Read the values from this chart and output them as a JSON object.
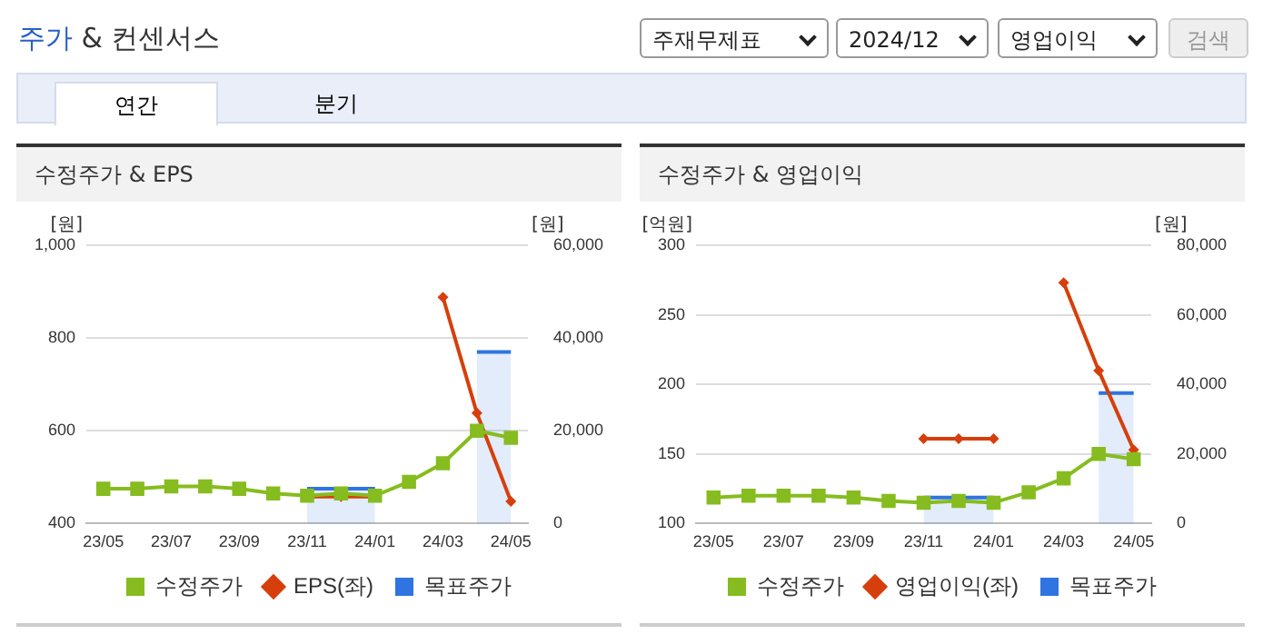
{
  "chart_data": [
    {
      "type": "other",
      "title": "주가 & 컨센서스",
      "annotations": [
        "주재무제표",
        "2024/12",
        "영업이익",
        "검색",
        "연간",
        "분기"
      ]
    },
    {
      "type": "line",
      "title": "수정주가 & EPS",
      "ylabel": "[원]",
      "y2label": "[원]",
      "categories": [
        "23/05",
        null,
        "23/07",
        null,
        "23/09",
        null,
        "23/11",
        null,
        "24/01",
        null,
        "24/03",
        null,
        "24/05"
      ],
      "series": [
        {
          "name": "목표주가",
          "type": "area",
          "axis": "y2",
          "color": "#2f74e0",
          "marker": "none",
          "values": [
            null,
            null,
            null,
            null,
            null,
            null,
            7500,
            7500,
            7500,
            null,
            null,
            37000,
            37000
          ]
        },
        {
          "name": "EPS(좌)",
          "type": "line",
          "color": "#d63f0c",
          "marker": "diamond",
          "values": [
            null,
            null,
            null,
            null,
            null,
            null,
            458,
            458,
            458,
            null,
            888,
            638,
            448
          ]
        },
        {
          "name": "수정주가",
          "type": "line",
          "axis": "y2",
          "color": "#86bc1f",
          "marker": "square",
          "values": [
            7500,
            7500,
            8000,
            8000,
            7500,
            6500,
            6000,
            6500,
            6000,
            9000,
            13000,
            20000,
            18500
          ]
        }
      ],
      "ylim": [
        400,
        1000
      ],
      "yticks": [
        400,
        600,
        800,
        {
          "value": 1000,
          "label": "1,000"
        }
      ],
      "y2lim": [
        0,
        60000
      ],
      "y2ticks": [
        0,
        {
          "value": 20000,
          "label": "20,000"
        },
        {
          "value": 40000,
          "label": "40,000"
        },
        {
          "value": 60000,
          "label": "60,000"
        }
      ],
      "grid": "y",
      "legend": "bottom"
    },
    {
      "type": "line",
      "title": "수정주가 & 영업이익",
      "ylabel": "[억원]",
      "y2label": "[원]",
      "categories": [
        "23/05",
        null,
        "23/07",
        null,
        "23/09",
        null,
        "23/11",
        null,
        "24/01",
        null,
        "24/03",
        null,
        "24/05"
      ],
      "series": [
        {
          "name": "목표주가",
          "type": "area",
          "axis": "y2",
          "color": "#2f74e0",
          "marker": "none",
          "values": [
            null,
            null,
            null,
            null,
            null,
            null,
            7500,
            7500,
            7500,
            null,
            null,
            37500,
            37500
          ]
        },
        {
          "name": "영업이익(좌)",
          "type": "line",
          "color": "#d63f0c",
          "marker": "diamond",
          "values": [
            null,
            null,
            null,
            null,
            null,
            null,
            161,
            161,
            161,
            null,
            273,
            210,
            153
          ]
        },
        {
          "name": "수정주가",
          "type": "line",
          "axis": "y2",
          "color": "#86bc1f",
          "marker": "square",
          "values": [
            7500,
            8000,
            8000,
            8000,
            7500,
            6500,
            6000,
            6500,
            6000,
            9000,
            13000,
            20000,
            18500
          ]
        }
      ],
      "ylim": [
        100,
        300
      ],
      "yticks": [
        100,
        150,
        200,
        250,
        300
      ],
      "y2lim": [
        0,
        80000
      ],
      "y2ticks": [
        0,
        {
          "value": 20000,
          "label": "20,000"
        },
        {
          "value": 40000,
          "label": "40,000"
        },
        {
          "value": 60000,
          "label": "60,000"
        },
        {
          "value": 80000,
          "label": "80,000"
        }
      ],
      "grid": "y",
      "legend": "bottom"
    }
  ]
}
